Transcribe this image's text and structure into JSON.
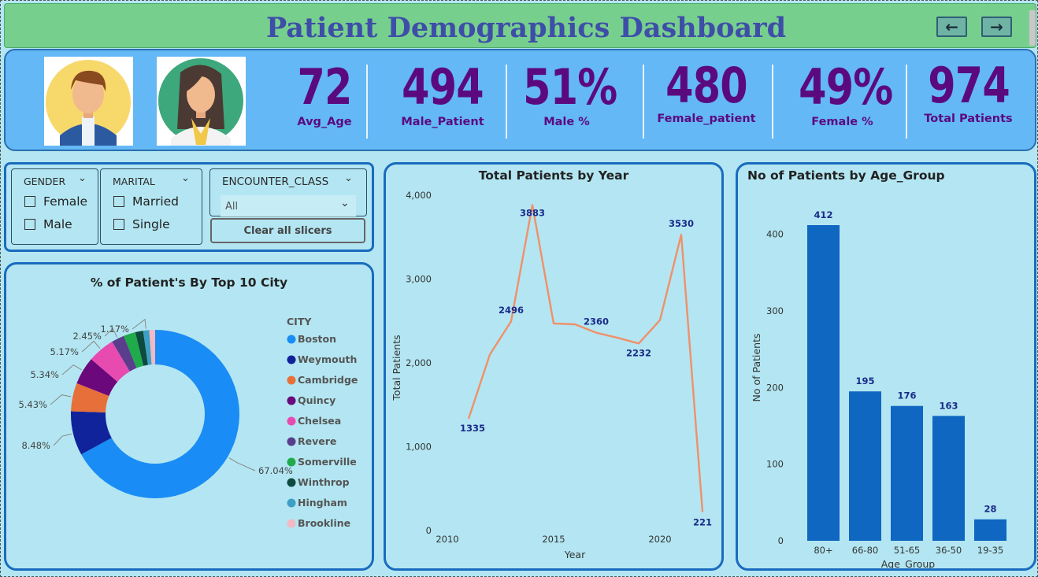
{
  "header": {
    "title": "Patient Demographics Dashboard",
    "back_icon": "arrow-left-icon",
    "forward_icon": "arrow-right-icon"
  },
  "kpis": [
    {
      "value": "72",
      "label": "Avg_Age"
    },
    {
      "value": "494",
      "label": "Male_Patient"
    },
    {
      "value": "51%",
      "label": "Male %"
    },
    {
      "value": "480",
      "label": "Female_patient"
    },
    {
      "value": "49%",
      "label": "Female %"
    },
    {
      "value": "974",
      "label": "Total  Patients"
    }
  ],
  "avatars": [
    "male-avatar-icon",
    "female-avatar-icon"
  ],
  "slicers": {
    "gender": {
      "header": "GENDER",
      "options": [
        "Female",
        "Male"
      ]
    },
    "marital": {
      "header": "MARITAL",
      "options": [
        "Married",
        "Single"
      ]
    },
    "encounter": {
      "header": "ENCOUNTER_CLASS",
      "selected": "All"
    },
    "clear_label": "Clear all slicers"
  },
  "colors": {
    "title": "#3e4ea8",
    "kpi": "#5b0a7e",
    "line": "#f0906a",
    "bar": "#0f67c2",
    "label": "#1a2a8a"
  },
  "chart_data": [
    {
      "type": "pie",
      "title": "% of Patient's By Top 10 City",
      "legend_title": "CITY",
      "legend_position": "right",
      "categories": [
        "Boston",
        "Weymouth",
        "Cambridge",
        "Quincy",
        "Chelsea",
        "Revere",
        "Somerville",
        "Winthrop",
        "Hingham",
        "Brookline"
      ],
      "values": [
        67.04,
        8.48,
        5.43,
        5.34,
        5.17,
        2.45,
        2.3,
        1.5,
        1.17,
        1.12
      ],
      "labels": [
        "67.04%",
        "8.48%",
        "5.43%",
        "5.34%",
        "5.17%",
        "2.45%",
        "",
        "",
        "1.17%",
        ""
      ],
      "colors": [
        "#1a8cf5",
        "#10239a",
        "#e7703a",
        "#6b087b",
        "#e84bb0",
        "#5a3d8c",
        "#1fab4a",
        "#0e4a3e",
        "#3e9fc4",
        "#f3b9c4"
      ]
    },
    {
      "type": "line",
      "title": "Total Patients by Year",
      "xlabel": "Year",
      "ylabel": "Total Patients",
      "x": [
        2011,
        2012,
        2013,
        2014,
        2015,
        2016,
        2017,
        2018,
        2019,
        2020,
        2021,
        2022
      ],
      "values": [
        1335,
        2100,
        2496,
        3883,
        2470,
        2460,
        2360,
        2300,
        2232,
        2510,
        3530,
        221
      ],
      "labels": [
        "1335",
        "",
        "2496",
        "3883",
        "",
        "",
        "2360",
        "",
        "2232",
        "",
        "3530",
        "221"
      ],
      "xticks": [
        2010,
        2015,
        2020
      ],
      "yticks": [
        "0",
        "1,000",
        "2,000",
        "3,000",
        "4,000"
      ],
      "xlim": [
        2010,
        2022
      ],
      "ylim": [
        0,
        4000
      ]
    },
    {
      "type": "bar",
      "title": "No of Patients by Age_Group",
      "xlabel": "Age_Group",
      "ylabel": "No of Patients",
      "categories": [
        "80+",
        "66-80",
        "51-65",
        "36-50",
        "19-35"
      ],
      "values": [
        412,
        195,
        176,
        163,
        28
      ],
      "yticks": [
        "0",
        "100",
        "200",
        "300",
        "400"
      ],
      "ylim": [
        0,
        412
      ]
    }
  ]
}
